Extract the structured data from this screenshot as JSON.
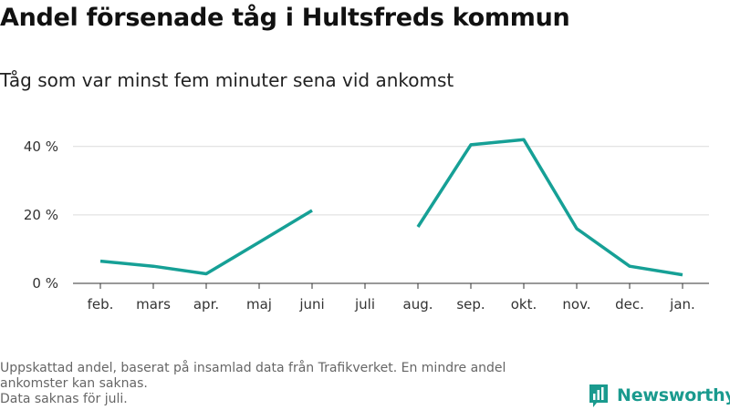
{
  "chart_data": {
    "type": "line",
    "title": "Andel försenade tåg i Hultsfreds kommun",
    "subtitle": "Tåg som var minst fem minuter sena vid ankomst",
    "categories": [
      "feb.",
      "mars",
      "apr.",
      "maj",
      "juni",
      "juli",
      "aug.",
      "sep.",
      "okt.",
      "nov.",
      "dec.",
      "jan."
    ],
    "series": [
      {
        "values": [
          6.5,
          5.0,
          2.8,
          12.0,
          21.3,
          null,
          16.5,
          40.5,
          42.0,
          16.0,
          5.0,
          2.5
        ],
        "color": "#16a096"
      }
    ],
    "ylim": [
      0,
      45
    ],
    "yticks": [
      0,
      20,
      40
    ],
    "ytick_labels": [
      "0 %",
      "20 %",
      "40 %"
    ],
    "grid": true,
    "legend": "none"
  },
  "footer": {
    "note1": "Uppskattad andel, baserat på insamlad data från Trafikverket. En mindre andel ankomster kan saknas.",
    "note2": "Data saknas för juli."
  },
  "brand": {
    "name": "Newsworthy",
    "icon": "newsworthy-logo-icon",
    "color": "#1a9a8e"
  }
}
